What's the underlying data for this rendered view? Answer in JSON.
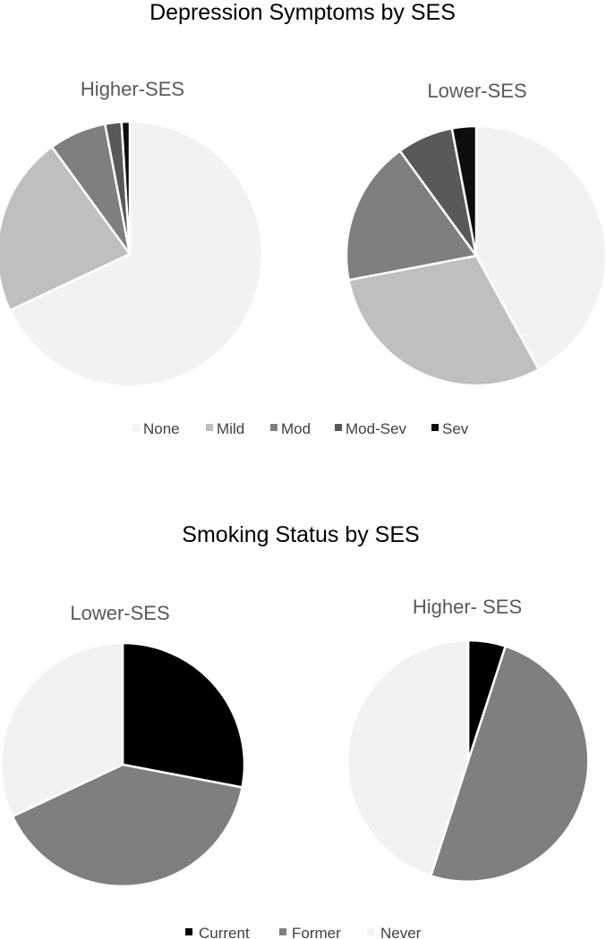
{
  "chart_data": [
    {
      "type": "pie",
      "title": "Depression Symptoms by SES",
      "legend": [
        "None",
        "Mild",
        "Mod",
        "Mod-Sev",
        "Sev"
      ],
      "colors": [
        "#f2f2f2",
        "#bfbfbf",
        "#7f7f7f",
        "#595959",
        "#0d0d0d"
      ],
      "legend_position": "bottom",
      "pies": [
        {
          "name": "Higher-SES",
          "values": [
            68,
            22,
            7,
            2,
            1
          ]
        },
        {
          "name": "Lower-SES",
          "values": [
            42,
            30,
            18,
            7,
            3
          ]
        }
      ]
    },
    {
      "type": "pie",
      "title": "Smoking Status by SES",
      "legend": [
        "Current",
        "Former",
        "Never"
      ],
      "colors": [
        "#000000",
        "#7f7f7f",
        "#f2f2f2"
      ],
      "legend_position": "bottom",
      "pies": [
        {
          "name": "Lower-SES",
          "values": [
            28,
            40,
            32
          ]
        },
        {
          "name": "Higher- SES",
          "values": [
            5,
            50,
            45
          ]
        }
      ]
    }
  ]
}
